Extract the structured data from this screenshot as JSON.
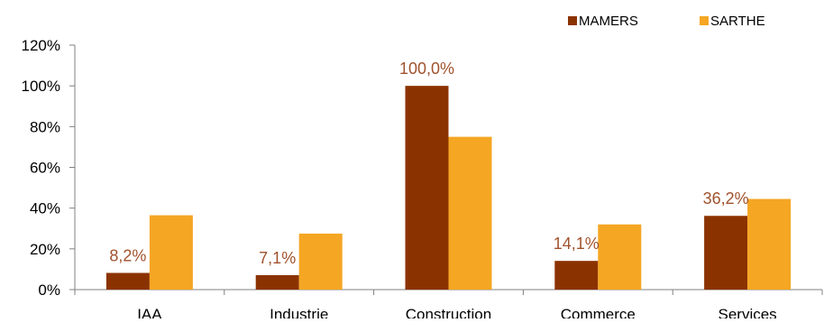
{
  "chart_data": {
    "type": "bar",
    "categories": [
      "IAA",
      "Industrie",
      "Construction",
      "Commerce",
      "Services"
    ],
    "series": [
      {
        "name": "MAMERS",
        "values": [
          8.2,
          7.1,
          100.0,
          14.1,
          36.2
        ],
        "color": "#8B3300",
        "labels": [
          "8,2%",
          "7,1%",
          "100,0%",
          "14,1%",
          "36,2%"
        ]
      },
      {
        "name": "SARTHE",
        "values": [
          36.5,
          27.5,
          75.0,
          32.0,
          44.5
        ],
        "color": "#F5A623"
      }
    ],
    "ylim": [
      0,
      120
    ],
    "yticks": [
      0,
      20,
      40,
      60,
      80,
      100,
      120
    ],
    "ytick_labels": [
      "0%",
      "20%",
      "40%",
      "60%",
      "80%",
      "100%",
      "120%"
    ],
    "legend_position": "top-right",
    "grid": false,
    "data_label_color": "#A0522D",
    "title": "",
    "xlabel": "",
    "ylabel": ""
  }
}
